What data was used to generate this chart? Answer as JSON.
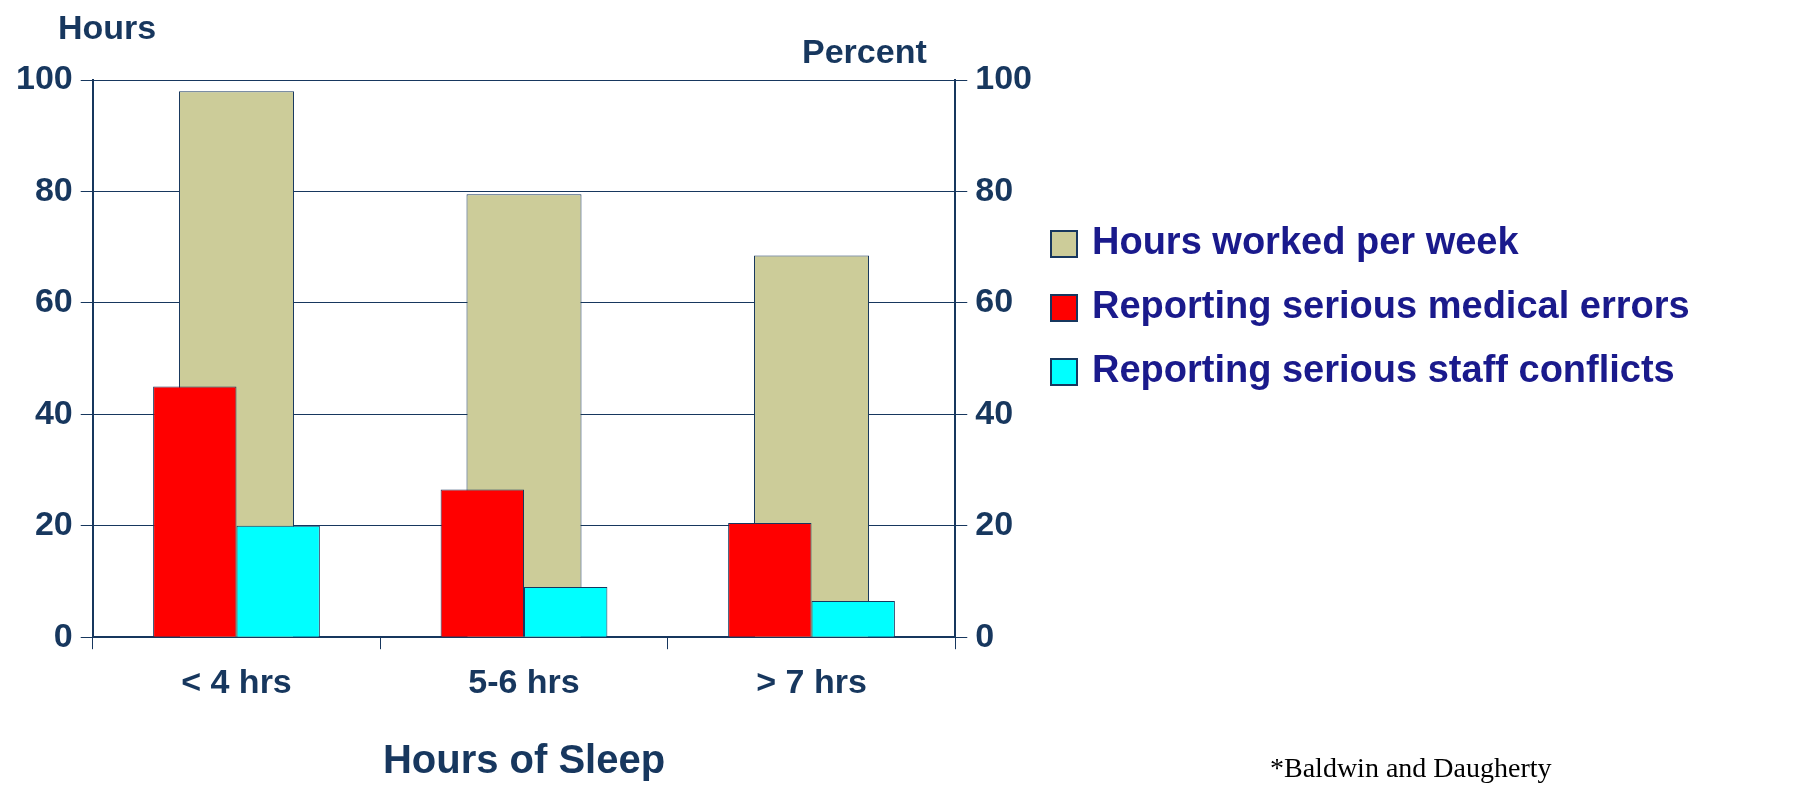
{
  "chart_data": {
    "type": "bar",
    "xlabel": "Hours of Sleep",
    "ylabel": "Hours",
    "y2label": "Percent",
    "categories": [
      "< 4 hrs",
      "5-6 hrs",
      "> 7 hrs"
    ],
    "series": [
      {
        "name": "Hours worked per week",
        "color": "#cccc99",
        "values": [
          98,
          79.5,
          68.5
        ],
        "axis": "y"
      },
      {
        "name": "Reporting serious medical errors",
        "color": "#ff0000",
        "values": [
          45,
          26.5,
          20.5
        ],
        "axis": "y2"
      },
      {
        "name": "Reporting serious staff conflicts",
        "color": "#00ffff",
        "values": [
          20,
          9,
          6.5
        ],
        "axis": "y2"
      }
    ],
    "ylim": [
      0,
      100
    ],
    "yticks": [
      0,
      20,
      40,
      60,
      80,
      100
    ],
    "y2lim": [
      0,
      100
    ],
    "y2ticks": [
      0,
      20,
      40,
      60,
      80,
      100
    ],
    "grid": "y",
    "legend": "right",
    "annotations": [
      "*Baldwin and Daugherty"
    ]
  }
}
